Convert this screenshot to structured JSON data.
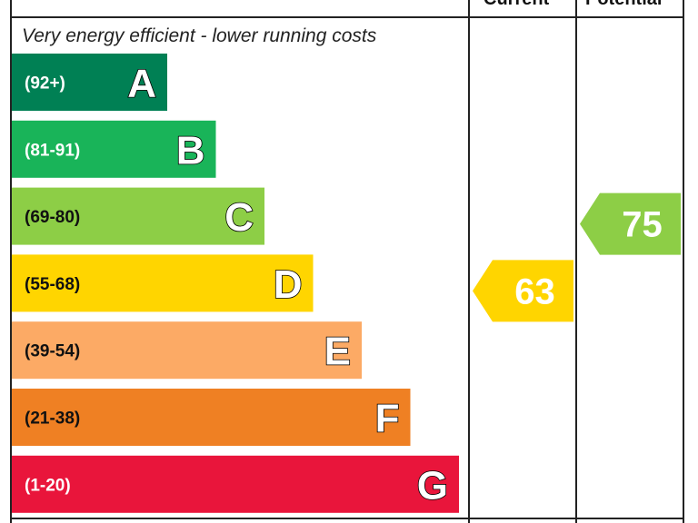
{
  "header": {
    "current_label": "Current",
    "potential_label": "Potential"
  },
  "top_note": "Very energy efficient - lower running costs",
  "chart_data": {
    "type": "bar",
    "categories": [
      "A",
      "B",
      "C",
      "D",
      "E",
      "F",
      "G"
    ],
    "ranges": [
      "(92+)",
      "(81-91)",
      "(69-80)",
      "(55-68)",
      "(39-54)",
      "(21-38)",
      "(1-20)"
    ],
    "band_lower_bounds": [
      92,
      81,
      69,
      55,
      39,
      21,
      1
    ],
    "colors": [
      "#008054",
      "#19b459",
      "#8dce46",
      "#ffd500",
      "#fcaa65",
      "#ef8023",
      "#e9153b"
    ],
    "range_text_colors": [
      "#ffffff",
      "#ffffff",
      "#111111",
      "#111111",
      "#111111",
      "#111111",
      "#ffffff"
    ],
    "current": {
      "value": 63,
      "band": "D",
      "color": "#ffd500"
    },
    "potential": {
      "value": 75,
      "band": "C",
      "color": "#8dce46"
    }
  }
}
